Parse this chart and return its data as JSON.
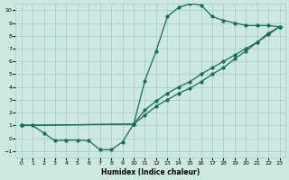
{
  "xlabel": "Humidex (Indice chaleur)",
  "xlim": [
    -0.5,
    23.5
  ],
  "ylim": [
    -1.5,
    10.5
  ],
  "xticks": [
    0,
    1,
    2,
    3,
    4,
    5,
    6,
    7,
    8,
    9,
    10,
    11,
    12,
    13,
    14,
    15,
    16,
    17,
    18,
    19,
    20,
    21,
    22,
    23
  ],
  "yticks": [
    -1,
    0,
    1,
    2,
    3,
    4,
    5,
    6,
    7,
    8,
    9,
    10
  ],
  "bg_color": "#cce8e0",
  "grid_color": "#aacccc",
  "line_color": "#1a6b5a",
  "line1_x": [
    0,
    1,
    2,
    3,
    4,
    5,
    6,
    7,
    8,
    9,
    10,
    11,
    12,
    13,
    14,
    15,
    16,
    17,
    18,
    19,
    20,
    21,
    22,
    23
  ],
  "line1_y": [
    1.0,
    1.0,
    0.4,
    -0.2,
    -0.15,
    -0.15,
    -0.2,
    -0.9,
    -0.9,
    -0.3,
    1.1,
    4.5,
    6.8,
    9.5,
    10.2,
    10.5,
    10.4,
    9.5,
    9.2,
    9.0,
    8.8,
    8.8,
    8.8,
    8.7
  ],
  "line2_x": [
    0,
    10,
    11,
    12,
    13,
    14,
    15,
    16,
    17,
    18,
    19,
    20,
    21,
    22,
    23
  ],
  "line2_y": [
    1.0,
    1.1,
    2.2,
    2.9,
    3.5,
    4.0,
    4.4,
    5.0,
    5.5,
    6.0,
    6.5,
    7.0,
    7.5,
    8.2,
    8.7
  ],
  "line3_x": [
    0,
    10,
    11,
    12,
    13,
    14,
    15,
    16,
    17,
    18,
    19,
    20,
    21,
    22,
    23
  ],
  "line3_y": [
    1.0,
    1.1,
    1.8,
    2.5,
    3.0,
    3.5,
    3.9,
    4.4,
    5.0,
    5.5,
    6.2,
    6.8,
    7.5,
    8.1,
    8.7
  ]
}
